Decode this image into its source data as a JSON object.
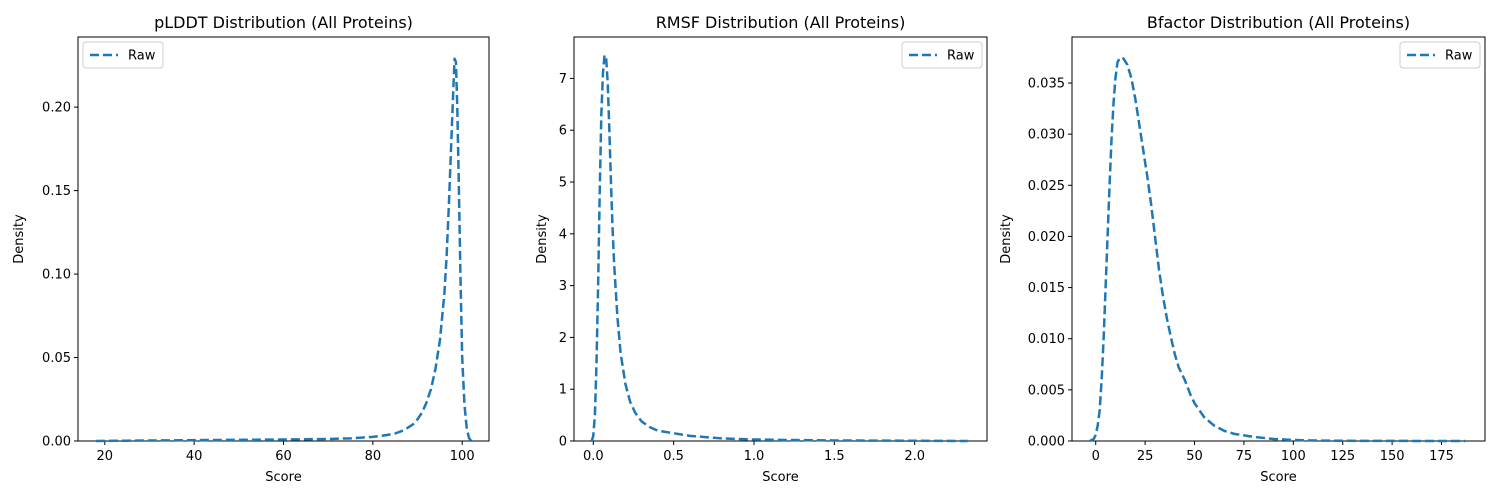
{
  "chart_data": [
    {
      "type": "line",
      "title": "pLDDT Distribution (All Proteins)",
      "xlabel": "Score",
      "ylabel": "Density",
      "xlim": [
        14,
        106
      ],
      "ylim": [
        0,
        0.242
      ],
      "xticks": [
        20,
        40,
        60,
        80,
        100
      ],
      "xtick_labels": [
        "20",
        "40",
        "60",
        "80",
        "100"
      ],
      "yticks": [
        0,
        0.05,
        0.1,
        0.15,
        0.2
      ],
      "ytick_labels": [
        "0.00",
        "0.05",
        "0.10",
        "0.15",
        "0.20"
      ],
      "legend_position": "upper-left",
      "grid": false,
      "series": [
        {
          "name": "Raw",
          "color": "#1f77b4",
          "style": "dashed",
          "x": [
            18,
            30,
            40,
            50,
            60,
            70,
            75,
            80,
            83,
            85,
            87,
            89,
            90,
            91,
            92,
            93,
            94,
            95,
            96,
            96.5,
            97,
            97.5,
            98,
            98.3,
            98.6,
            98.9,
            99.2,
            99.6,
            100,
            100.5,
            101,
            101.5,
            102
          ],
          "y": [
            0.0,
            0.0003,
            0.0005,
            0.0007,
            0.0009,
            0.0012,
            0.0016,
            0.0025,
            0.0035,
            0.0045,
            0.0065,
            0.01,
            0.013,
            0.017,
            0.023,
            0.031,
            0.043,
            0.06,
            0.088,
            0.11,
            0.14,
            0.175,
            0.21,
            0.229,
            0.227,
            0.2,
            0.16,
            0.1,
            0.05,
            0.022,
            0.008,
            0.002,
            0.0
          ]
        }
      ]
    },
    {
      "type": "line",
      "title": "RMSF Distribution (All Proteins)",
      "xlabel": "Score",
      "ylabel": "Density",
      "xlim": [
        -0.12,
        2.45
      ],
      "ylim": [
        0,
        7.8
      ],
      "xticks": [
        0.0,
        0.5,
        1.0,
        1.5,
        2.0
      ],
      "xtick_labels": [
        "0.0",
        "0.5",
        "1.0",
        "1.5",
        "2.0"
      ],
      "yticks": [
        0,
        1,
        2,
        3,
        4,
        5,
        6,
        7
      ],
      "ytick_labels": [
        "0",
        "1",
        "2",
        "3",
        "4",
        "5",
        "6",
        "7"
      ],
      "legend_position": "upper-right",
      "grid": false,
      "series": [
        {
          "name": "Raw",
          "color": "#1f77b4",
          "style": "dashed",
          "x": [
            -0.01,
            0.0,
            0.01,
            0.02,
            0.03,
            0.04,
            0.05,
            0.06,
            0.07,
            0.08,
            0.09,
            0.1,
            0.11,
            0.12,
            0.13,
            0.15,
            0.17,
            0.2,
            0.23,
            0.26,
            0.3,
            0.35,
            0.4,
            0.5,
            0.6,
            0.7,
            0.8,
            1.0,
            1.2,
            1.5,
            2.0,
            2.33
          ],
          "y": [
            0.0,
            0.1,
            0.5,
            1.5,
            3.0,
            4.8,
            6.3,
            7.1,
            7.45,
            7.4,
            6.9,
            6.0,
            5.0,
            4.1,
            3.4,
            2.4,
            1.7,
            1.1,
            0.75,
            0.55,
            0.38,
            0.27,
            0.2,
            0.15,
            0.1,
            0.075,
            0.05,
            0.03,
            0.02,
            0.01,
            0.005,
            0.0
          ]
        }
      ]
    },
    {
      "type": "line",
      "title": "Bfactor Distribution (All Proteins)",
      "xlabel": "Score",
      "ylabel": "Density",
      "xlim": [
        -12,
        197
      ],
      "ylim": [
        0,
        0.0395
      ],
      "xticks": [
        0,
        25,
        50,
        75,
        100,
        125,
        150,
        175
      ],
      "xtick_labels": [
        "0",
        "25",
        "50",
        "75",
        "100",
        "125",
        "150",
        "175"
      ],
      "yticks": [
        0,
        0.005,
        0.01,
        0.015,
        0.02,
        0.025,
        0.03,
        0.035
      ],
      "ytick_labels": [
        "0.000",
        "0.005",
        "0.010",
        "0.015",
        "0.020",
        "0.025",
        "0.030",
        "0.035"
      ],
      "legend_position": "upper-right",
      "grid": false,
      "series": [
        {
          "name": "Raw",
          "color": "#1f77b4",
          "style": "dashed",
          "x": [
            -3,
            -1,
            0,
            1,
            2,
            3,
            4,
            5,
            6,
            7,
            8,
            9,
            10,
            11,
            12,
            13,
            14,
            16,
            18,
            20,
            22,
            24,
            26,
            28,
            30,
            32,
            34,
            36,
            38,
            40,
            42,
            45,
            48,
            50,
            55,
            60,
            65,
            70,
            80,
            90,
            100,
            110,
            125,
            150,
            175,
            187
          ],
          "y": [
            0.0,
            0.0002,
            0.0006,
            0.0015,
            0.003,
            0.006,
            0.01,
            0.015,
            0.02,
            0.025,
            0.0295,
            0.033,
            0.0355,
            0.037,
            0.0374,
            0.0375,
            0.0374,
            0.0368,
            0.0355,
            0.0335,
            0.031,
            0.0285,
            0.026,
            0.0232,
            0.02,
            0.0168,
            0.0142,
            0.012,
            0.0102,
            0.0085,
            0.0072,
            0.006,
            0.0045,
            0.0037,
            0.0023,
            0.0015,
            0.001,
            0.0007,
            0.0004,
            0.0002,
            0.0001,
            5e-05,
            2e-05,
            1e-05,
            0.0,
            0.0
          ]
        }
      ]
    }
  ]
}
